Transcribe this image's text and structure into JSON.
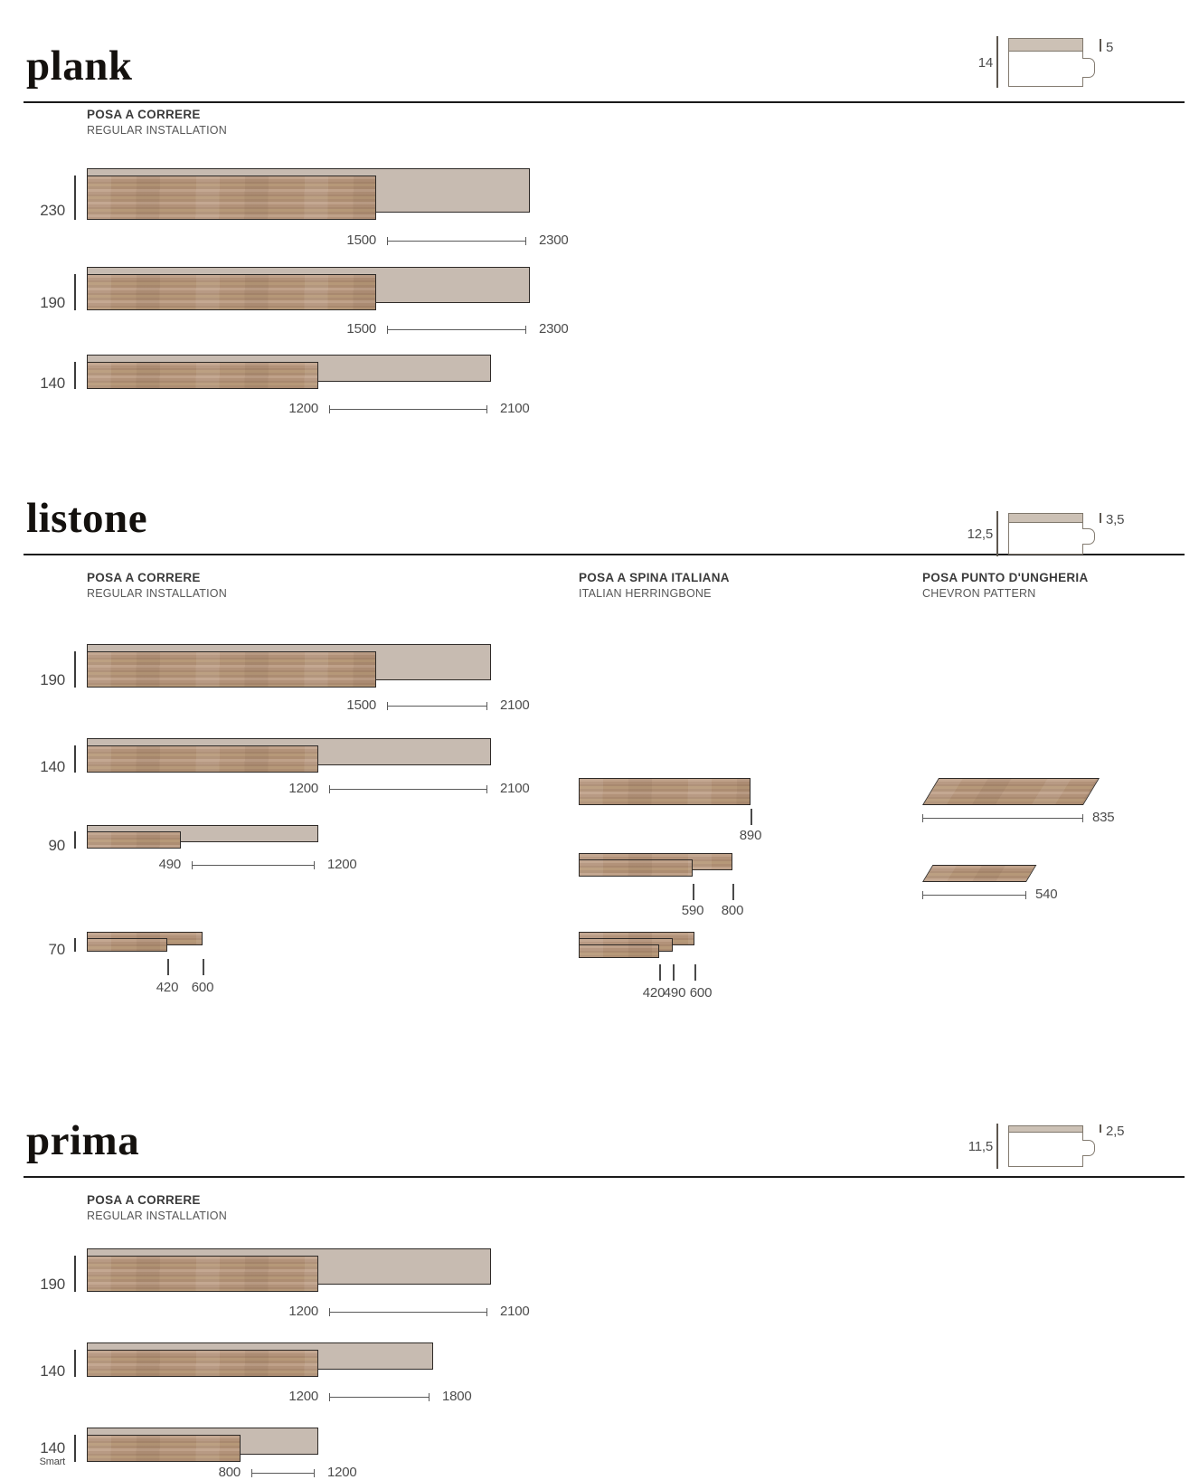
{
  "page": {
    "background": "#ffffff"
  },
  "colors": {
    "rule": "#1a1a1a",
    "outline": "#2e2a27",
    "total_fill": "#c7bbb1",
    "wood_base": "#b2937b",
    "text": "#4c4c4c",
    "heading": "#3b3b3b",
    "profile_layer": "#ccc1b5",
    "profile_outline": "#837b70"
  },
  "sections": [
    {
      "id": "plank",
      "title": "plank",
      "profile": {
        "total_thickness": "14",
        "wear_layer": "5"
      },
      "columns": [
        {
          "header": {
            "title": "POSA A CORRERE",
            "subtitle": "REGULAR INSTALLATION"
          },
          "rows": [
            {
              "type": "overlap",
              "width_label": "230",
              "width_mm": 230,
              "plank_mm": 1500,
              "total_mm": 2300,
              "plank_label": "1500",
              "total_label": "2300"
            },
            {
              "type": "overlap",
              "width_label": "190",
              "width_mm": 190,
              "plank_mm": 1500,
              "total_mm": 2300,
              "plank_label": "1500",
              "total_label": "2300"
            },
            {
              "type": "overlap",
              "width_label": "140",
              "width_mm": 140,
              "plank_mm": 1200,
              "total_mm": 2100,
              "plank_label": "1200",
              "total_label": "2100"
            }
          ]
        }
      ]
    },
    {
      "id": "listone",
      "title": "listone",
      "profile": {
        "total_thickness": "12,5",
        "wear_layer": "3,5"
      },
      "columns": [
        {
          "header": {
            "title": "POSA A CORRERE",
            "subtitle": "REGULAR INSTALLATION"
          },
          "rows": [
            {
              "type": "overlap",
              "width_label": "190",
              "width_mm": 190,
              "plank_mm": 1500,
              "total_mm": 2100,
              "plank_label": "1500",
              "total_label": "2100"
            },
            {
              "type": "overlap",
              "width_label": "140",
              "width_mm": 140,
              "plank_mm": 1200,
              "total_mm": 2100,
              "plank_label": "1200",
              "total_label": "2100"
            },
            {
              "type": "overlap",
              "width_label": "90",
              "width_mm": 90,
              "plank_mm": 490,
              "total_mm": 1200,
              "plank_label": "490",
              "total_label": "1200"
            },
            {
              "type": "stack",
              "width_label": "70",
              "width_mm": 70,
              "planks_mm": [
                600,
                420
              ],
              "tick_labels": [
                "420",
                "600"
              ]
            }
          ]
        },
        {
          "header": {
            "title": "POSA A SPINA ITALIANA",
            "subtitle": "ITALIAN HERRINGBONE"
          },
          "rows": [
            {
              "type": "stack",
              "width_mm": 140,
              "planks_mm": [
                890
              ],
              "tick_labels": [
                "890"
              ]
            },
            {
              "type": "stack",
              "width_mm": 90,
              "planks_mm": [
                800,
                590
              ],
              "tick_labels": [
                "590",
                "800"
              ]
            },
            {
              "type": "stack",
              "width_mm": 70,
              "planks_mm": [
                600,
                490,
                420
              ],
              "tick_labels": [
                "420",
                "490",
                "600"
              ]
            }
          ]
        },
        {
          "header": {
            "title": "POSA PUNTO D'UNGHERIA",
            "subtitle": "CHEVRON PATTERN"
          },
          "rows": [
            {
              "type": "chevron",
              "width_mm": 140,
              "length_mm": 835,
              "length_label": "835"
            },
            {
              "type": "chevron",
              "width_mm": 90,
              "length_mm": 540,
              "length_label": "540"
            }
          ]
        }
      ]
    },
    {
      "id": "prima",
      "title": "prima",
      "profile": {
        "total_thickness": "11,5",
        "wear_layer": "2,5"
      },
      "columns": [
        {
          "header": {
            "title": "POSA A CORRERE",
            "subtitle": "REGULAR INSTALLATION"
          },
          "rows": [
            {
              "type": "overlap",
              "width_label": "190",
              "width_mm": 190,
              "plank_mm": 1200,
              "total_mm": 2100,
              "plank_label": "1200",
              "total_label": "2100"
            },
            {
              "type": "overlap",
              "width_label": "140",
              "width_mm": 140,
              "plank_mm": 1200,
              "total_mm": 1800,
              "plank_label": "1200",
              "total_label": "1800"
            },
            {
              "type": "overlap",
              "width_label": "140",
              "width_sublabel": "Smart",
              "width_mm": 140,
              "plank_mm": 800,
              "total_mm": 1200,
              "plank_label": "800",
              "total_label": "1200"
            }
          ]
        }
      ]
    }
  ]
}
